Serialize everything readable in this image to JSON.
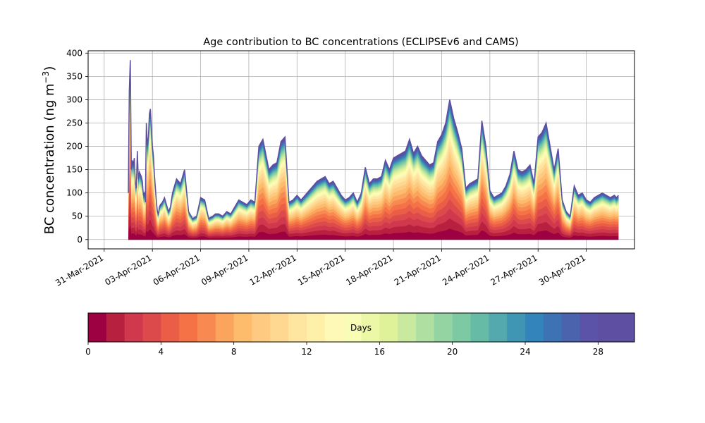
{
  "chart_data": {
    "type": "area",
    "title": "Age contribution to BC concentrations (ECLIPSEv6 and CAMS)",
    "xlabel": "",
    "ylabel": "BC concentration (ng m",
    "ylabel_sup": "−3",
    "ylabel_close": ")",
    "ylim": [
      -20,
      405
    ],
    "yticks": [
      0,
      50,
      100,
      150,
      200,
      250,
      300,
      350,
      400
    ],
    "x_start": "2021-03-30",
    "x_end": "2021-05-03",
    "xticks": [
      "31-Mar-2021",
      "03-Apr-2021",
      "06-Apr-2021",
      "09-Apr-2021",
      "12-Apr-2021",
      "15-Apr-2021",
      "18-Apr-2021",
      "21-Apr-2021",
      "24-Apr-2021",
      "27-Apr-2021",
      "30-Apr-2021"
    ],
    "xtick_dates": [
      "2021-03-31",
      "2021-04-03",
      "2021-04-06",
      "2021-04-09",
      "2021-04-12",
      "2021-04-15",
      "2021-04-18",
      "2021-04-21",
      "2021-04-24",
      "2021-04-27",
      "2021-04-30"
    ],
    "grid": true,
    "total_series": {
      "name": "",
      "x": [
        "2021-04-01 12:00",
        "2021-04-01 13:30",
        "2021-04-01 15:00",
        "2021-04-01 16:30",
        "2021-04-01 18:00",
        "2021-04-01 19:30",
        "2021-04-01 21:00",
        "2021-04-01 22:30",
        "2021-04-02 00:00",
        "2021-04-02 01:30",
        "2021-04-02 03:00",
        "2021-04-02 04:30",
        "2021-04-02 06:00",
        "2021-04-02 07:30",
        "2021-04-02 09:00",
        "2021-04-02 10:30",
        "2021-04-02 12:00",
        "2021-04-02 13:30",
        "2021-04-02 15:00",
        "2021-04-02 16:30",
        "2021-04-02 18:00",
        "2021-04-02 19:30",
        "2021-04-02 21:00",
        "2021-04-03 00:00",
        "2021-04-03 01:30",
        "2021-04-03 03:00",
        "2021-04-03 04:30",
        "2021-04-03 06:00",
        "2021-04-03 07:30",
        "2021-04-03 09:00",
        "2021-04-03 10:30",
        "2021-04-03 12:00",
        "2021-04-03 15:00",
        "2021-04-03 18:00",
        "2021-04-03 21:00",
        "2021-04-04 00:00",
        "2021-04-04 03:00",
        "2021-04-04 06:00",
        "2021-04-04 09:00",
        "2021-04-04 12:00",
        "2021-04-04 18:00",
        "2021-04-05 00:00",
        "2021-04-05 06:00",
        "2021-04-05 12:00",
        "2021-04-05 18:00",
        "2021-04-06 00:00",
        "2021-04-06 06:00",
        "2021-04-06 12:00",
        "2021-04-06 18:00",
        "2021-04-06 22:00",
        "2021-04-07 03:00",
        "2021-04-07 09:00",
        "2021-04-07 15:00",
        "2021-04-07 21:00",
        "2021-04-08 03:00",
        "2021-04-08 09:00",
        "2021-04-08 15:00",
        "2021-04-08 21:00",
        "2021-04-09 03:00",
        "2021-04-09 09:00",
        "2021-04-09 15:00",
        "2021-04-09 21:00",
        "2021-04-10 06:00",
        "2021-04-10 12:00",
        "2021-04-10 18:00",
        "2021-04-11 00:00",
        "2021-04-11 06:00",
        "2021-04-11 12:00",
        "2021-04-11 18:00",
        "2021-04-12 00:00",
        "2021-04-12 06:00",
        "2021-04-12 12:00",
        "2021-04-12 18:00",
        "2021-04-13 00:00",
        "2021-04-13 06:00",
        "2021-04-13 12:00",
        "2021-04-13 18:00",
        "2021-04-14 00:00",
        "2021-04-14 06:00",
        "2021-04-14 12:00",
        "2021-04-14 18:00",
        "2021-04-15 00:00",
        "2021-04-15 06:00",
        "2021-04-15 12:00",
        "2021-04-15 18:00",
        "2021-04-16 00:00",
        "2021-04-16 06:00",
        "2021-04-16 12:00",
        "2021-04-16 18:00",
        "2021-04-17 00:00",
        "2021-04-17 06:00",
        "2021-04-17 12:00",
        "2021-04-17 18:00",
        "2021-04-18 00:00",
        "2021-04-18 06:00",
        "2021-04-18 12:00",
        "2021-04-18 18:00",
        "2021-04-19 00:00",
        "2021-04-19 06:00",
        "2021-04-19 12:00",
        "2021-04-19 18:00",
        "2021-04-20 00:00",
        "2021-04-20 06:00",
        "2021-04-20 12:00",
        "2021-04-20 18:00",
        "2021-04-21 00:00",
        "2021-04-21 06:00",
        "2021-04-21 12:00",
        "2021-04-21 18:00",
        "2021-04-22 00:00",
        "2021-04-22 06:00",
        "2021-04-22 12:00",
        "2021-04-22 18:00",
        "2021-04-23 00:00",
        "2021-04-23 06:00",
        "2021-04-23 12:00",
        "2021-04-23 18:00",
        "2021-04-24 00:00",
        "2021-04-24 06:00",
        "2021-04-24 12:00",
        "2021-04-24 18:00",
        "2021-04-25 00:00",
        "2021-04-25 06:00",
        "2021-04-25 12:00",
        "2021-04-25 18:00",
        "2021-04-26 00:00",
        "2021-04-26 06:00",
        "2021-04-26 12:00",
        "2021-04-26 18:00",
        "2021-04-27 00:00",
        "2021-04-27 06:00",
        "2021-04-27 12:00",
        "2021-04-27 18:00",
        "2021-04-28 00:00",
        "2021-04-28 06:00",
        "2021-04-28 12:00",
        "2021-04-28 18:00",
        "2021-04-29 00:00",
        "2021-04-29 06:00",
        "2021-04-29 12:00",
        "2021-04-29 18:00",
        "2021-04-30 00:00",
        "2021-04-30 06:00",
        "2021-04-30 12:00",
        "2021-04-30 18:00",
        "2021-05-01 00:00",
        "2021-05-01 06:00",
        "2021-05-01 12:00",
        "2021-05-01 18:00",
        "2021-05-01 21:00",
        "2021-05-02 00:00"
      ],
      "y": [
        100,
        320,
        385,
        150,
        170,
        160,
        175,
        120,
        110,
        190,
        130,
        145,
        140,
        135,
        125,
        95,
        100,
        80,
        250,
        200,
        220,
        270,
        280,
        200,
        180,
        140,
        110,
        80,
        60,
        55,
        70,
        75,
        80,
        90,
        75,
        60,
        70,
        100,
        115,
        130,
        120,
        150,
        60,
        45,
        50,
        90,
        85,
        45,
        50,
        55,
        55,
        50,
        60,
        55,
        70,
        85,
        80,
        75,
        85,
        80,
        200,
        215,
        150,
        160,
        165,
        210,
        220,
        80,
        85,
        95,
        85,
        95,
        105,
        115,
        125,
        130,
        135,
        120,
        125,
        110,
        95,
        85,
        90,
        100,
        80,
        100,
        155,
        120,
        130,
        130,
        135,
        170,
        150,
        175,
        180,
        185,
        190,
        215,
        185,
        200,
        180,
        170,
        160,
        165,
        210,
        225,
        250,
        300,
        260,
        230,
        195,
        110,
        120,
        125,
        130,
        255,
        200,
        105,
        90,
        95,
        100,
        115,
        140,
        190,
        150,
        145,
        150,
        160,
        120,
        220,
        230,
        250,
        200,
        150,
        195,
        85,
        60,
        50,
        115,
        95,
        100,
        85,
        80,
        90,
        95,
        100,
        95,
        90,
        95,
        90,
        95
      ],
      "units": "ng m-3"
    },
    "colorbar": {
      "label": "Days",
      "min": 0,
      "max": 30,
      "ticks": [
        0,
        4,
        8,
        12,
        16,
        20,
        24,
        28
      ],
      "colors": [
        "#9e0142",
        "#b7203f",
        "#cf384d",
        "#dd4a4c",
        "#ea5e48",
        "#f47245",
        "#f88a51",
        "#fba45d",
        "#fdbb6c",
        "#fec980",
        "#fed891",
        "#fee6a0",
        "#fef0a8",
        "#fff9b8",
        "#f8fcb4",
        "#edf8a6",
        "#dff299",
        "#c8e99e",
        "#b0dfa2",
        "#94d4a3",
        "#7cc9a4",
        "#65bba6",
        "#53a9ad",
        "#3f96b4",
        "#3484bc",
        "#3d72b4",
        "#4b62ac",
        "#5a53a7",
        "#5e4fa2",
        "#5e4fa2"
      ]
    }
  }
}
